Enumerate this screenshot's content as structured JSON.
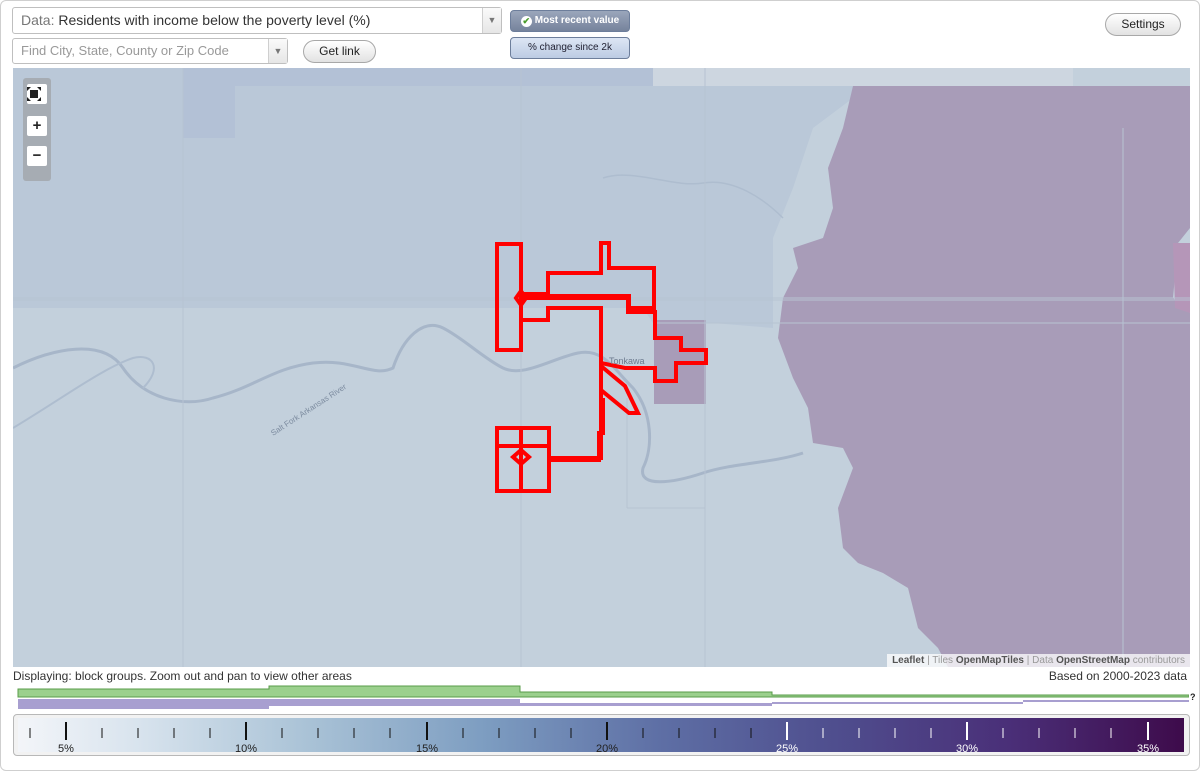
{
  "controls": {
    "data_prefix": "Data:",
    "data_value": "Residents with income below the poverty level (%)",
    "search_placeholder": "Find City, State, County or Zip Code",
    "get_link_label": "Get link",
    "mode_recent_label": "Most recent value",
    "mode_change_label": "% change since 2k",
    "settings_label": "Settings"
  },
  "map": {
    "place_label": "Tonkawa",
    "river_label": "Salt Fork Arkansas River",
    "zoom_fit_icon": "fit-bounds-icon",
    "zoom_in_label": "+",
    "zoom_out_label": "−",
    "attribution": {
      "leaflet": "Leaflet",
      "tiles_prefix": "Tiles",
      "tiles": "OpenMapTiles",
      "data_prefix": "Data",
      "data": "OpenStreetMap",
      "suffix": "contributors"
    },
    "colors": {
      "low": "#c3d0dc",
      "mid": "#a9b8cd",
      "high": "#a89cb8",
      "highlight": "#ff0000"
    }
  },
  "footer": {
    "displaying": "Displaying: block groups. Zoom out and pan to view other areas",
    "based_on": "Based on 2000-2023 data",
    "help_label": "?"
  },
  "legend": {
    "tick_labels": [
      "5%",
      "10%",
      "15%",
      "20%",
      "25%",
      "30%",
      "35%"
    ],
    "colors": [
      "#f3f5f9",
      "#a9c2d6",
      "#5e6fa5",
      "#4a2f78",
      "#3e0b4b"
    ]
  }
}
